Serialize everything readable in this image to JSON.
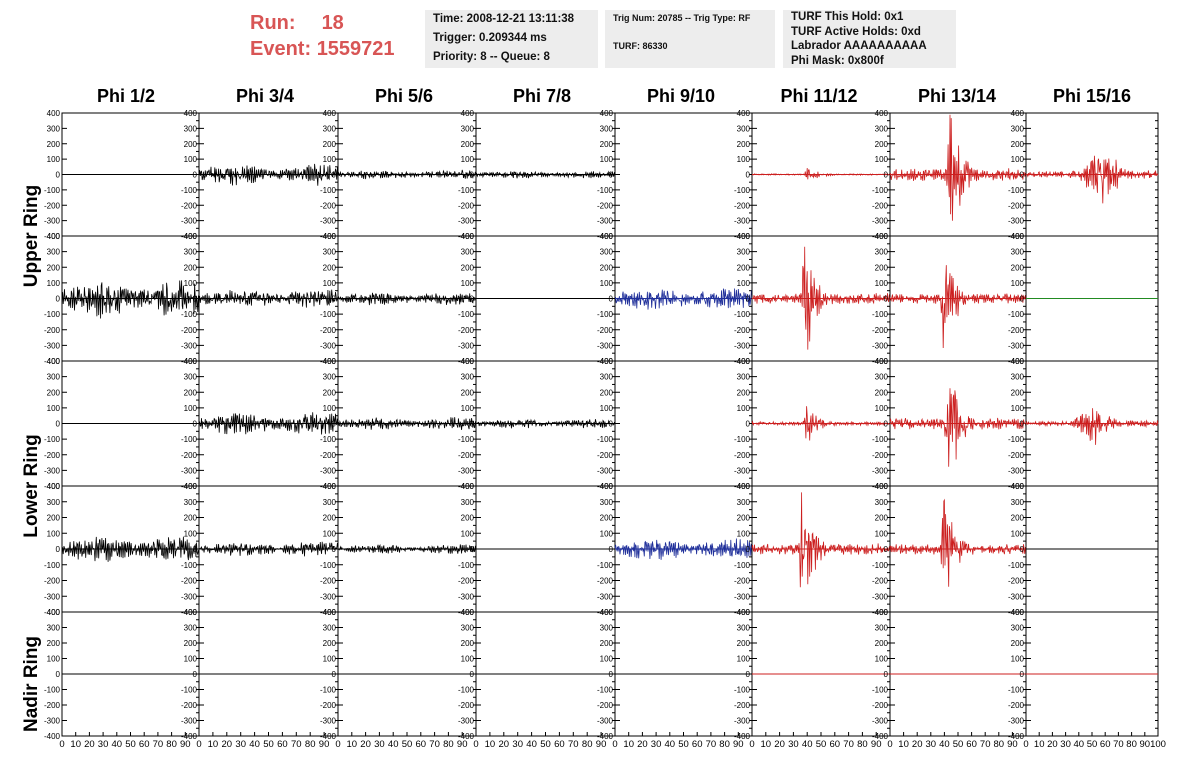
{
  "header": {
    "run_label": "Run:",
    "run_value": "18",
    "event_label": "Event:",
    "event_value": "1559721",
    "time_line": "Time: 2008-12-21 13:11:38",
    "trigger_line": "Trigger: 0.209344 ms",
    "priority_line": "Priority: 8 -- Queue: 8",
    "trig_line": "Trig Num: 20785 -- Trig Type: RF",
    "turf_line": "TURF: 86330",
    "turf_hold_line": "TURF This Hold: 0x1",
    "turf_active_line": "TURF Active Holds: 0xd",
    "labrador_line": "Labrador AAAAAAAAAA",
    "phimask_line": "Phi Mask: 0x800f"
  },
  "columns": [
    "Phi 1/2",
    "Phi 3/4",
    "Phi 5/6",
    "Phi 7/8",
    "Phi 9/10",
    "Phi 11/12",
    "Phi 13/14",
    "Phi 15/16"
  ],
  "rings": [
    "Upper Ring",
    "Lower Ring",
    "Nadir Ring"
  ],
  "colors": {
    "black": "#000000",
    "red": "#cc1f1f",
    "blue": "#1f2f9a",
    "green": "#228b22",
    "header_red": "#d85555",
    "box_bg": "#ededed"
  },
  "chart_data": {
    "type": "line",
    "description_kind": "waveform-grid",
    "ylim": [
      -400,
      400
    ],
    "xlim": [
      0,
      100
    ],
    "y_ticks": [
      "400",
      "300",
      "200",
      "100",
      "0",
      "-100",
      "-200",
      "-300",
      "-400"
    ],
    "x_tick_labels": [
      "0",
      "10",
      "20",
      "30",
      "40",
      "50",
      "60",
      "70",
      "80",
      "90",
      "100"
    ],
    "rows": [
      [
        {
          "color": "black",
          "amp": 0,
          "style": "flat"
        },
        {
          "color": "black",
          "amp": 60,
          "style": "noise"
        },
        {
          "color": "black",
          "amp": 25,
          "style": "noise"
        },
        {
          "color": "black",
          "amp": 20,
          "style": "noise"
        },
        {
          "color": "black",
          "amp": 0,
          "style": "none"
        },
        {
          "color": "red",
          "amp": 50,
          "style": "burst",
          "peak": 40
        },
        {
          "color": "red",
          "amp": 410,
          "style": "burst",
          "peak": 44
        },
        {
          "color": "red",
          "amp": 150,
          "style": "noiseburst",
          "peak": 58
        }
      ],
      [
        {
          "color": "black",
          "amp": 100,
          "style": "noise"
        },
        {
          "color": "black",
          "amp": 50,
          "style": "noise"
        },
        {
          "color": "black",
          "amp": 35,
          "style": "noise"
        },
        {
          "color": "black",
          "amp": 0,
          "style": "flat"
        },
        {
          "color": "blue",
          "amp": 60,
          "style": "noise"
        },
        {
          "color": "red",
          "amp": 350,
          "style": "burst",
          "peak": 38
        },
        {
          "color": "red",
          "amp": 330,
          "style": "burst",
          "peak": 40
        },
        {
          "color": "green",
          "amp": 0,
          "style": "flat"
        }
      ],
      [
        {
          "color": "black",
          "amp": 0,
          "style": "flat"
        },
        {
          "color": "black",
          "amp": 60,
          "style": "noise"
        },
        {
          "color": "black",
          "amp": 35,
          "style": "noise"
        },
        {
          "color": "black",
          "amp": 25,
          "style": "noise"
        },
        {
          "color": "black",
          "amp": 0,
          "style": "none"
        },
        {
          "color": "red",
          "amp": 120,
          "style": "burst",
          "peak": 40
        },
        {
          "color": "red",
          "amp": 380,
          "style": "burst",
          "peak": 43
        },
        {
          "color": "red",
          "amp": 110,
          "style": "noiseburst",
          "peak": 52
        }
      ],
      [
        {
          "color": "black",
          "amp": 70,
          "style": "noise"
        },
        {
          "color": "black",
          "amp": 40,
          "style": "noise"
        },
        {
          "color": "black",
          "amp": 25,
          "style": "noise"
        },
        {
          "color": "black",
          "amp": 0,
          "style": "flat"
        },
        {
          "color": "blue",
          "amp": 55,
          "style": "noise"
        },
        {
          "color": "red",
          "amp": 360,
          "style": "burst",
          "peak": 36
        },
        {
          "color": "red",
          "amp": 350,
          "style": "burst",
          "peak": 40
        },
        {
          "color": "black",
          "amp": 0,
          "style": "flat"
        }
      ],
      [
        {
          "color": "black",
          "amp": 0,
          "style": "flat"
        },
        {
          "color": "black",
          "amp": 0,
          "style": "flat"
        },
        {
          "color": "black",
          "amp": 0,
          "style": "flat"
        },
        {
          "color": "black",
          "amp": 0,
          "style": "flat"
        },
        {
          "color": "black",
          "amp": 0,
          "style": "flat"
        },
        {
          "color": "red",
          "amp": 0,
          "style": "flat"
        },
        {
          "color": "red",
          "amp": 0,
          "style": "flat"
        },
        {
          "color": "red",
          "amp": 0,
          "style": "flat"
        }
      ]
    ]
  }
}
